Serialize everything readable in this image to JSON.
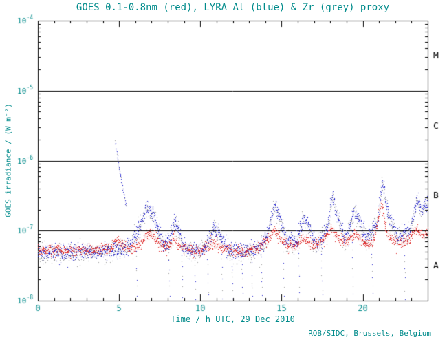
{
  "chart_data": {
    "type": "scatter",
    "title": "GOES 0.1-0.8nm (red), LYRA Al (blue) & Zr (grey) proxy",
    "xlabel": "Time / h UTC, 29 Dec 2010",
    "ylabel": "GOES irradiance / (W m⁻²)",
    "credit": "ROB/SIDC, Brussels, Belgium",
    "xlim": [
      0,
      24
    ],
    "ylim_log10": [
      -8,
      -4
    ],
    "x_major_ticks": [
      0,
      5,
      10,
      15,
      20
    ],
    "x_minor_step": 1,
    "grid": "off",
    "hlines": [
      1e-05,
      1e-06,
      1e-07
    ],
    "flare_classes": [
      {
        "label": "M",
        "log10_mid": -4.5
      },
      {
        "label": "C",
        "log10_mid": -5.5
      },
      {
        "label": "B",
        "log10_mid": -6.5
      },
      {
        "label": "A",
        "log10_mid": -7.5
      }
    ],
    "colors": {
      "axis": "#000000",
      "axis_text": "#008b8b",
      "class_letters": "#000000",
      "red": "#dd2222",
      "blue": "#2222cc",
      "grey": "#999999"
    },
    "series": [
      {
        "name": "LYRA Zr proxy",
        "color": "grey",
        "step": 0.02,
        "noise_log10": 0.07,
        "anchors": [
          [
            0,
            4.9e-08
          ],
          [
            0.5,
            4.7e-08
          ],
          [
            1,
            5e-08
          ],
          [
            1.5,
            4.6e-08
          ],
          [
            2,
            4.9e-08
          ],
          [
            2.5,
            4.8e-08
          ],
          [
            3,
            4.9e-08
          ],
          [
            3.5,
            4.7e-08
          ],
          [
            4,
            5e-08
          ],
          [
            4.5,
            5.1e-08
          ],
          [
            5,
            5.3e-08
          ],
          [
            5.6,
            5.5e-08
          ],
          [
            6.25,
            1e-07
          ],
          [
            6.65,
            2e-07
          ],
          [
            7.05,
            1.85e-07
          ],
          [
            7.35,
            1e-07
          ],
          [
            7.7,
            6.2e-08
          ],
          [
            8.1,
            6.6e-08
          ],
          [
            8.35,
            1.25e-07
          ],
          [
            8.6,
            1.1e-07
          ],
          [
            8.95,
            5.7e-08
          ],
          [
            9.5,
            5e-08
          ],
          [
            10.2,
            5.1e-08
          ],
          [
            10.8,
            1e-07
          ],
          [
            11.15,
            9e-08
          ],
          [
            11.6,
            5.3e-08
          ],
          [
            12.2,
            4.8e-08
          ],
          [
            12.9,
            5e-08
          ],
          [
            13.6,
            5.3e-08
          ],
          [
            14.2,
            9e-08
          ],
          [
            14.5,
            2.1e-07
          ],
          [
            14.85,
            1.6e-07
          ],
          [
            15.3,
            7.1e-08
          ],
          [
            15.9,
            6.6e-08
          ],
          [
            16.3,
            1.4e-07
          ],
          [
            16.65,
            1.2e-07
          ],
          [
            17.1,
            6.2e-08
          ],
          [
            17.8,
            1e-07
          ],
          [
            18.1,
            2.9e-07
          ],
          [
            18.4,
            1.6e-07
          ],
          [
            18.9,
            7.1e-08
          ],
          [
            19.45,
            1.75e-07
          ],
          [
            19.75,
            1.4e-07
          ],
          [
            20.2,
            7.6e-08
          ],
          [
            20.9,
            1.3e-07
          ],
          [
            21.2,
            4.9e-07
          ],
          [
            21.55,
            1.6e-07
          ],
          [
            22.1,
            7.6e-08
          ],
          [
            22.9,
            9.5e-08
          ],
          [
            23.3,
            2.65e-07
          ],
          [
            23.65,
            2e-07
          ],
          [
            24,
            2.4e-07
          ]
        ]
      },
      {
        "name": "LYRA Al proxy",
        "color": "blue",
        "step": 0.012,
        "noise_log10": 0.055,
        "anchors": [
          [
            0,
            5.1e-08
          ],
          [
            0.5,
            4.9e-08
          ],
          [
            1,
            5.2e-08
          ],
          [
            1.5,
            4.8e-08
          ],
          [
            2,
            5.1e-08
          ],
          [
            2.5,
            5e-08
          ],
          [
            3,
            5.1e-08
          ],
          [
            3.5,
            4.9e-08
          ],
          [
            4,
            5.2e-08
          ],
          [
            4.5,
            5.3e-08
          ],
          [
            5,
            5.5e-08
          ],
          [
            5.6,
            5.8e-08
          ],
          [
            6.25,
            1.1e-07
          ],
          [
            6.65,
            2.1e-07
          ],
          [
            7.05,
            1.95e-07
          ],
          [
            7.35,
            1.1e-07
          ],
          [
            7.7,
            6.5e-08
          ],
          [
            8.1,
            7e-08
          ],
          [
            8.35,
            1.35e-07
          ],
          [
            8.6,
            1.15e-07
          ],
          [
            8.95,
            6e-08
          ],
          [
            9.5,
            5.2e-08
          ],
          [
            10.2,
            5.4e-08
          ],
          [
            10.8,
            1.05e-07
          ],
          [
            11.15,
            9.5e-08
          ],
          [
            11.6,
            5.6e-08
          ],
          [
            12.2,
            5e-08
          ],
          [
            12.9,
            5.2e-08
          ],
          [
            13.6,
            5.6e-08
          ],
          [
            14.2,
            9.5e-08
          ],
          [
            14.5,
            2.25e-07
          ],
          [
            14.85,
            1.7e-07
          ],
          [
            15.3,
            7.5e-08
          ],
          [
            15.9,
            7e-08
          ],
          [
            16.3,
            1.5e-07
          ],
          [
            16.65,
            1.25e-07
          ],
          [
            17.1,
            6.5e-08
          ],
          [
            17.8,
            1.05e-07
          ],
          [
            18.1,
            3.1e-07
          ],
          [
            18.4,
            1.7e-07
          ],
          [
            18.9,
            7.5e-08
          ],
          [
            19.45,
            1.85e-07
          ],
          [
            19.75,
            1.5e-07
          ],
          [
            20.2,
            8e-08
          ],
          [
            20.9,
            1.4e-07
          ],
          [
            21.2,
            5.2e-07
          ],
          [
            21.55,
            1.7e-07
          ],
          [
            22.1,
            8e-08
          ],
          [
            22.9,
            1e-07
          ],
          [
            23.3,
            2.8e-07
          ],
          [
            23.65,
            2.1e-07
          ],
          [
            24,
            2.5e-07
          ]
        ]
      },
      {
        "name": "GOES 0.1-0.8nm",
        "color": "red",
        "step": 0.012,
        "noise_log10": 0.04,
        "anchors": [
          [
            0,
            5.5e-08
          ],
          [
            0.5,
            5.2e-08
          ],
          [
            1,
            5.4e-08
          ],
          [
            1.5,
            5.1e-08
          ],
          [
            2,
            5.5e-08
          ],
          [
            2.5,
            5.3e-08
          ],
          [
            3,
            5.4e-08
          ],
          [
            3.5,
            5.2e-08
          ],
          [
            4,
            5.6e-08
          ],
          [
            4.5,
            5.5e-08
          ],
          [
            4.85,
            7.2e-08
          ],
          [
            5.3,
            6.2e-08
          ],
          [
            5.8,
            5.6e-08
          ],
          [
            6.3,
            6.5e-08
          ],
          [
            6.7,
            9e-08
          ],
          [
            7.1,
            8.8e-08
          ],
          [
            7.5,
            6.4e-08
          ],
          [
            8,
            5.8e-08
          ],
          [
            8.35,
            7.6e-08
          ],
          [
            8.7,
            6e-08
          ],
          [
            9.2,
            5.4e-08
          ],
          [
            10,
            5.4e-08
          ],
          [
            10.9,
            6.6e-08
          ],
          [
            11.4,
            5.6e-08
          ],
          [
            12,
            5.2e-08
          ],
          [
            12.7,
            5e-08
          ],
          [
            13.4,
            5.4e-08
          ],
          [
            14.2,
            7.5e-08
          ],
          [
            14.55,
            1.05e-07
          ],
          [
            14.9,
            8e-08
          ],
          [
            15.4,
            6.2e-08
          ],
          [
            16,
            6.4e-08
          ],
          [
            16.35,
            8.2e-08
          ],
          [
            16.8,
            6.2e-08
          ],
          [
            17.4,
            6.6e-08
          ],
          [
            18.05,
            1.1e-07
          ],
          [
            18.45,
            7.8e-08
          ],
          [
            19,
            6.6e-08
          ],
          [
            19.55,
            9.2e-08
          ],
          [
            20,
            6.8e-08
          ],
          [
            20.6,
            6.6e-08
          ],
          [
            21.15,
            2.5e-07
          ],
          [
            21.5,
            8.5e-08
          ],
          [
            22.1,
            6.8e-08
          ],
          [
            22.8,
            7.5e-08
          ],
          [
            23.25,
            1.05e-07
          ],
          [
            23.7,
            9e-08
          ],
          [
            24,
            9.5e-08
          ]
        ]
      }
    ],
    "decay_feature": {
      "t_start": 4.75,
      "t_end": 5.45,
      "y_start": 2e-06,
      "y_end": 2.2e-07,
      "points": 60,
      "noise_log10": 0.02,
      "colors": [
        "blue",
        "grey"
      ]
    },
    "dropouts": {
      "times": [
        6.0,
        8.0,
        8.8,
        9.6,
        10.4,
        11.25,
        11.9,
        12.5,
        13.1,
        13.7,
        15.05,
        16.0,
        17.4,
        19.3,
        20.5,
        22.5
      ],
      "floor": 1.2e-08,
      "points_each": 10,
      "colors": [
        "grey",
        "blue"
      ]
    },
    "y_tick_base": "10"
  }
}
